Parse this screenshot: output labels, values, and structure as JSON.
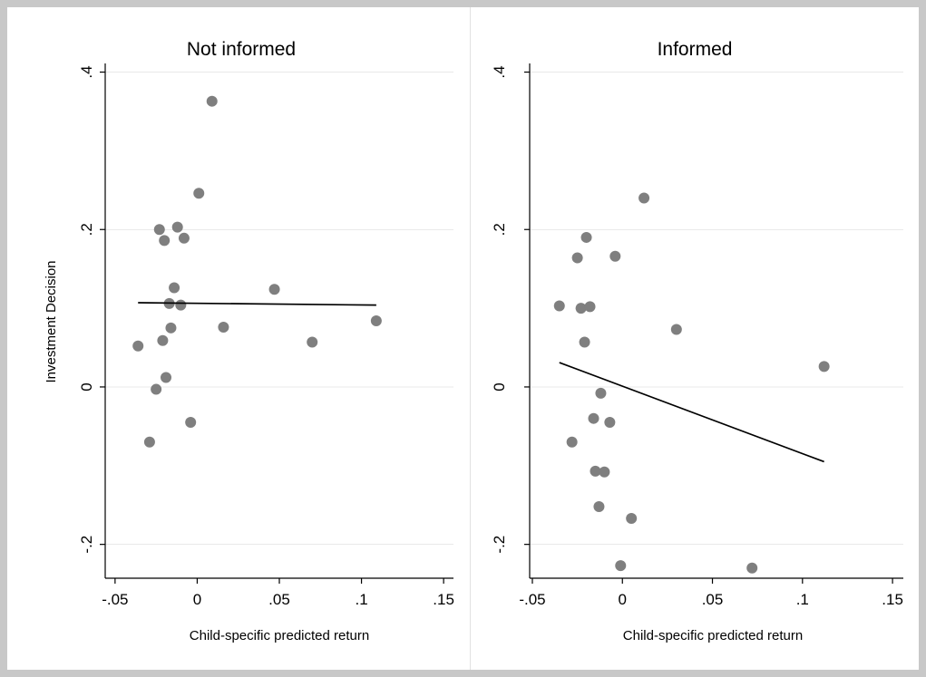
{
  "colors": {
    "frame": "#c8c8c8",
    "background": "#ffffff",
    "divider": "#e2e2e2",
    "title": "#1e2f52",
    "axis": "#000000",
    "grid": "#e9e9e9",
    "marker": "#7f7f7f",
    "fit_line": "#000000"
  },
  "chart_data": [
    {
      "type": "scatter",
      "title": "Not informed",
      "xlabel": "Child-specific predicted return",
      "ylabel": "Investment Decision",
      "xlim": [
        -0.056,
        0.156
      ],
      "ylim": [
        -0.243,
        0.411
      ],
      "xticks": {
        "values": [
          -0.05,
          0,
          0.05,
          0.1,
          0.15
        ],
        "labels": [
          "-.05",
          "0",
          ".05",
          ".1",
          ".15"
        ]
      },
      "yticks": {
        "values": [
          0.4,
          0.2,
          0,
          -0.2
        ],
        "labels": [
          ".4",
          ".2",
          "0",
          "-.2"
        ]
      },
      "grid": true,
      "series": [
        {
          "x": [
            0.009,
            0.001,
            -0.023,
            -0.012,
            -0.02,
            -0.008,
            -0.014,
            -0.017,
            -0.01,
            -0.016,
            -0.036,
            -0.021,
            -0.019,
            -0.025,
            -0.004,
            -0.029,
            0.016,
            0.047,
            0.07,
            0.109
          ],
          "y": [
            0.363,
            0.246,
            0.2,
            0.203,
            0.186,
            0.189,
            0.126,
            0.106,
            0.104,
            0.075,
            0.052,
            0.059,
            0.012,
            -0.003,
            -0.045,
            -0.07,
            0.076,
            0.124,
            0.057,
            0.084
          ]
        }
      ],
      "fit_line": {
        "x": [
          -0.036,
          0.109
        ],
        "y": [
          0.107,
          0.104
        ]
      }
    },
    {
      "type": "scatter",
      "title": "Informed",
      "xlabel": "Child-specific predicted return",
      "xlim": [
        -0.0515,
        0.156
      ],
      "ylim": [
        -0.243,
        0.411
      ],
      "xticks": {
        "values": [
          -0.05,
          0,
          0.05,
          0.1,
          0.15
        ],
        "labels": [
          "-.05",
          "0",
          ".05",
          ".1",
          ".15"
        ]
      },
      "yticks": {
        "values": [
          0.4,
          0.2,
          0,
          -0.2
        ],
        "labels": [
          ".4",
          ".2",
          "0",
          "-.2"
        ]
      },
      "grid": true,
      "series": [
        {
          "x": [
            0.012,
            -0.02,
            -0.025,
            -0.004,
            -0.035,
            -0.023,
            -0.018,
            0.03,
            -0.021,
            0.112,
            -0.012,
            -0.016,
            -0.007,
            -0.028,
            -0.015,
            -0.01,
            -0.013,
            0.005,
            -0.001,
            0.072
          ],
          "y": [
            0.24,
            0.19,
            0.164,
            0.166,
            0.103,
            0.1,
            0.102,
            0.073,
            0.057,
            0.026,
            -0.008,
            -0.04,
            -0.045,
            -0.07,
            -0.107,
            -0.108,
            -0.152,
            -0.167,
            -0.227,
            -0.23
          ]
        }
      ],
      "fit_line": {
        "x": [
          -0.035,
          0.112
        ],
        "y": [
          0.031,
          -0.095
        ]
      }
    }
  ]
}
